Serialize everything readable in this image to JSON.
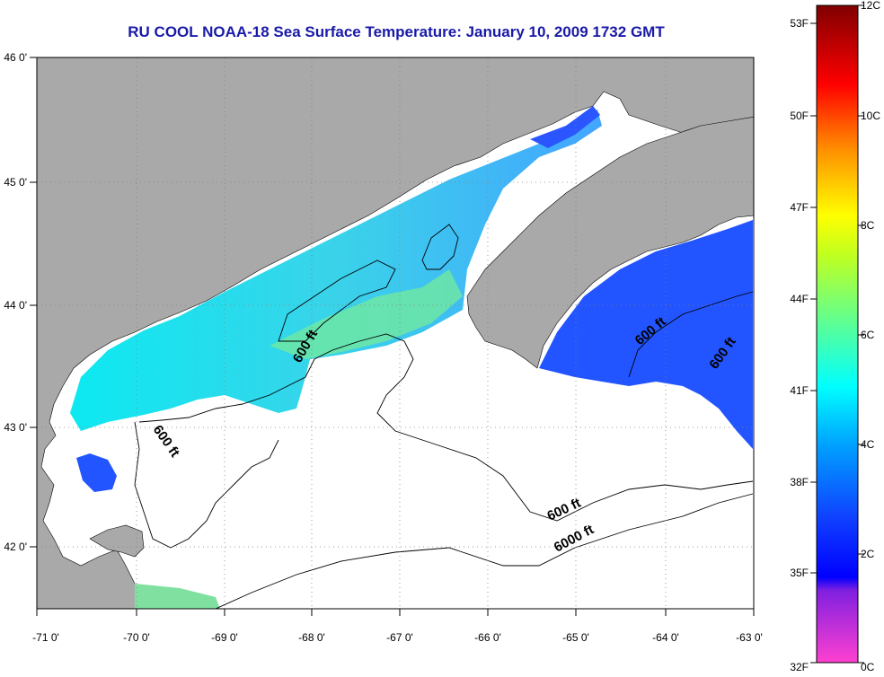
{
  "title": "RU COOL  NOAA-18  Sea Surface Temperature:  January 10, 2009 1732 GMT",
  "map": {
    "lon_ticks": [
      "-71 0'",
      "-70 0'",
      "-69 0'",
      "-68 0'",
      "-67 0'",
      "-66 0'",
      "-65 0'",
      "-64 0'",
      "-63 0'"
    ],
    "lat_ticks": [
      "46 0'",
      "45 0'",
      "44 0'",
      "43 0'",
      "42 0'"
    ],
    "contour_labels": [
      "600 ft",
      "600 ft",
      "600 ft",
      "600 ft",
      "600 ft",
      "6000 ft"
    ],
    "colors": {
      "land": "#a9a9a9",
      "cloud": "#ffffff",
      "grid": "#808080",
      "contour": "#000000"
    }
  },
  "colorbar": {
    "f_labels": [
      "53F",
      "50F",
      "47F",
      "44F",
      "41F",
      "38F",
      "35F",
      "32F"
    ],
    "c_labels": [
      "12C",
      "10C",
      "8C",
      "6C",
      "4C",
      "2C",
      "0C"
    ],
    "stops": [
      "#ff40d0",
      "#8020e0",
      "#0000ff",
      "#00a0ff",
      "#00ffff",
      "#80ff80",
      "#ffff00",
      "#ff8000",
      "#ff0000",
      "#8b0000"
    ]
  }
}
